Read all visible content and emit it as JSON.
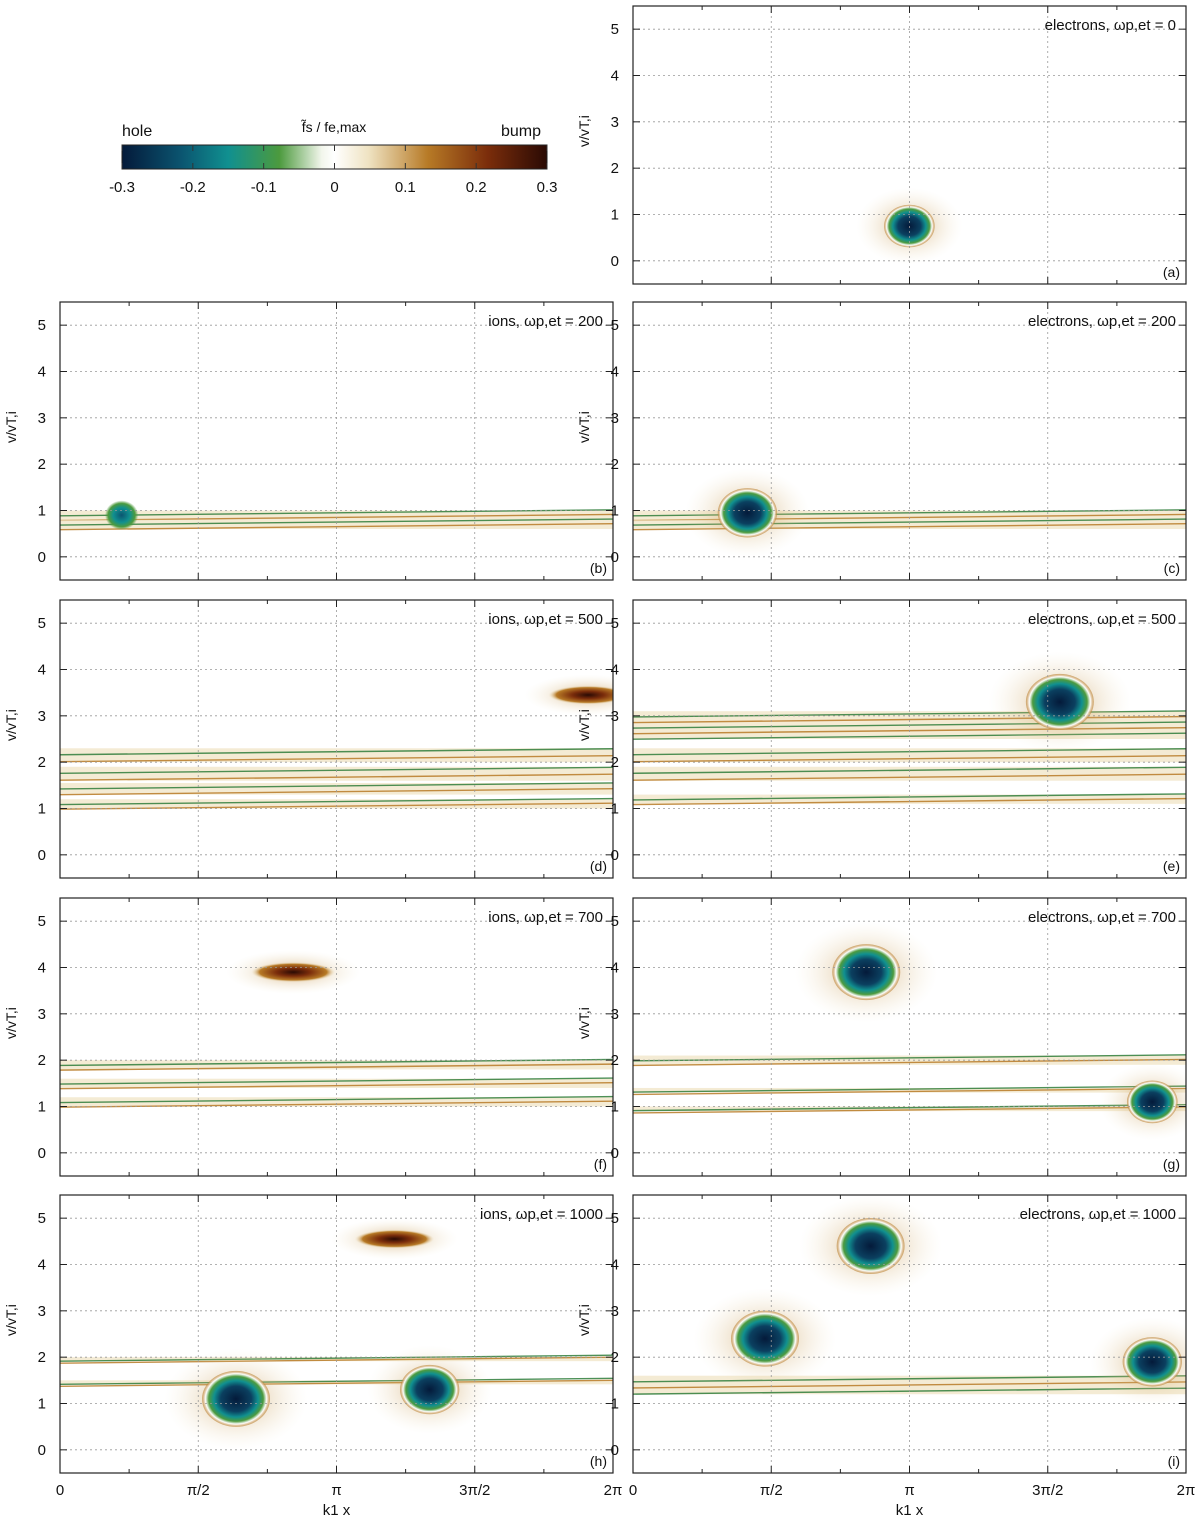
{
  "colorbar": {
    "title": "f̃s / fe,max",
    "left_label": "hole",
    "right_label": "bump",
    "ticks": [
      "-0.3",
      "-0.2",
      "-0.1",
      "0",
      "0.1",
      "0.2",
      "0.3"
    ],
    "range": [
      -0.3,
      0.3
    ],
    "colors": [
      "#041a3a",
      "#0b5570",
      "#109090",
      "#4c9a3e",
      "#f2f6ec",
      "#ffffff",
      "#efe3c2",
      "#b77a26",
      "#7b2d0b",
      "#2a0a04"
    ]
  },
  "x_axis": {
    "label": "k1 x",
    "ticks": [
      "0",
      "π/2",
      "π",
      "3π/2",
      "2π"
    ],
    "range": [
      0,
      6.2832
    ]
  },
  "y_axis": {
    "label": "v/vT,i",
    "ticks": [
      "5",
      "4",
      "3",
      "2",
      "1",
      "0"
    ],
    "range": [
      -0.5,
      5.5
    ]
  },
  "panels": [
    {
      "id": "a",
      "letter": "(a)",
      "species": "electrons",
      "time": "0",
      "title": "electrons, ωp,et = 0"
    },
    {
      "id": "b",
      "letter": "(b)",
      "species": "ions",
      "time": "200",
      "title": "ions, ωp,et = 200"
    },
    {
      "id": "c",
      "letter": "(c)",
      "species": "electrons",
      "time": "200",
      "title": "electrons, ωp,et = 200"
    },
    {
      "id": "d",
      "letter": "(d)",
      "species": "ions",
      "time": "500",
      "title": "ions, ωp,et = 500"
    },
    {
      "id": "e",
      "letter": "(e)",
      "species": "electrons",
      "time": "500",
      "title": "electrons, ωp,et = 500"
    },
    {
      "id": "f",
      "letter": "(f)",
      "species": "ions",
      "time": "700",
      "title": "ions, ωp,et = 700"
    },
    {
      "id": "g",
      "letter": "(g)",
      "species": "electrons",
      "time": "700",
      "title": "electrons, ωp,et = 700"
    },
    {
      "id": "h",
      "letter": "(h)",
      "species": "ions",
      "time": "1000",
      "title": "ions, ωp,et = 1000"
    },
    {
      "id": "i",
      "letter": "(i)",
      "species": "electrons",
      "time": "1000",
      "title": "electrons, ωp,et = 1000"
    }
  ],
  "chart_data": {
    "type": "heatmap",
    "title": "",
    "xlabel": "k1 x",
    "ylabel": "v/vT,i",
    "xlim": [
      0,
      6.2832
    ],
    "ylim": [
      -0.5,
      5.5
    ],
    "zlim": [
      -0.3,
      0.3
    ],
    "grid": true,
    "panels": [
      {
        "id": "a",
        "holes": [
          {
            "x": 3.14,
            "v": 0.75,
            "depth": -0.2
          }
        ],
        "bumps": [],
        "streaks": []
      },
      {
        "id": "b",
        "holes": [
          {
            "x": 0.7,
            "v": 0.9,
            "depth": -0.1
          }
        ],
        "bumps": [],
        "streaks": [
          [
            0.8,
            1.0
          ],
          [
            0.6,
            0.8
          ]
        ]
      },
      {
        "id": "c",
        "holes": [
          {
            "x": 1.3,
            "v": 0.95,
            "depth": -0.25
          }
        ],
        "bumps": [],
        "streaks": [
          [
            0.8,
            1.0
          ],
          [
            0.6,
            0.8
          ]
        ]
      },
      {
        "id": "d",
        "holes": [],
        "bumps": [
          {
            "x": 6.0,
            "v": 3.45,
            "height": 0.25
          }
        ],
        "streaks": [
          [
            2.0,
            2.3
          ],
          [
            1.6,
            1.9
          ],
          [
            1.3,
            1.55
          ],
          [
            1.0,
            1.2
          ]
        ]
      },
      {
        "id": "e",
        "holes": [
          {
            "x": 4.85,
            "v": 3.3,
            "depth": -0.3
          }
        ],
        "bumps": [],
        "streaks": [
          [
            2.5,
            3.1
          ],
          [
            2.0,
            2.3
          ],
          [
            1.6,
            1.9
          ],
          [
            1.1,
            1.3
          ]
        ]
      },
      {
        "id": "f",
        "holes": [],
        "bumps": [
          {
            "x": 2.65,
            "v": 3.9,
            "height": 0.3
          }
        ],
        "streaks": [
          [
            1.8,
            2.0
          ],
          [
            1.4,
            1.6
          ],
          [
            1.0,
            1.2
          ]
        ]
      },
      {
        "id": "g",
        "holes": [
          {
            "x": 2.65,
            "v": 3.9,
            "depth": -0.3
          },
          {
            "x": 5.9,
            "v": 1.1,
            "depth": -0.2
          }
        ],
        "bumps": [],
        "streaks": [
          [
            1.9,
            2.1
          ],
          [
            1.3,
            1.4
          ],
          [
            0.9,
            1.0
          ]
        ]
      },
      {
        "id": "h",
        "holes": [
          {
            "x": 2.0,
            "v": 1.1,
            "depth": -0.3
          },
          {
            "x": 4.2,
            "v": 1.3,
            "depth": -0.25
          }
        ],
        "bumps": [
          {
            "x": 3.8,
            "v": 4.55,
            "height": 0.25
          }
        ],
        "streaks": [
          [
            1.5,
            1.5
          ],
          [
            2.0,
            2.0
          ]
        ]
      },
      {
        "id": "i",
        "holes": [
          {
            "x": 2.7,
            "v": 4.4,
            "depth": -0.3
          },
          {
            "x": 1.5,
            "v": 2.4,
            "depth": -0.3
          },
          {
            "x": 5.9,
            "v": 1.9,
            "depth": -0.25
          }
        ],
        "bumps": [],
        "streaks": [
          [
            1.2,
            1.6
          ]
        ]
      }
    ]
  }
}
